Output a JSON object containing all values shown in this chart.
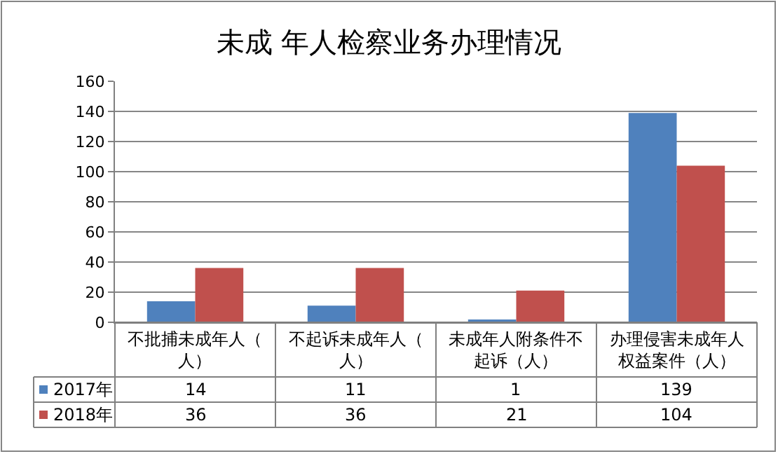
{
  "chart_data": {
    "type": "bar",
    "title": "未成 年人检察业务办理情况",
    "categories": [
      "不批捕未成年人（人）",
      "不起诉未成年人（人）",
      "未成年人附条件不起诉（人）",
      "办理侵害未成年人权益案件（人）"
    ],
    "series": [
      {
        "name": "2017年",
        "color": "#4f81bd",
        "values": [
          14,
          11,
          1,
          139
        ]
      },
      {
        "name": "2018年",
        "color": "#c0504d",
        "values": [
          36,
          36,
          21,
          104
        ]
      }
    ],
    "ylim": [
      0,
      160
    ],
    "yticks": [
      0,
      20,
      40,
      60,
      80,
      100,
      120,
      140,
      160
    ],
    "grid": "y",
    "legend": "bottom",
    "data_labels": true
  }
}
